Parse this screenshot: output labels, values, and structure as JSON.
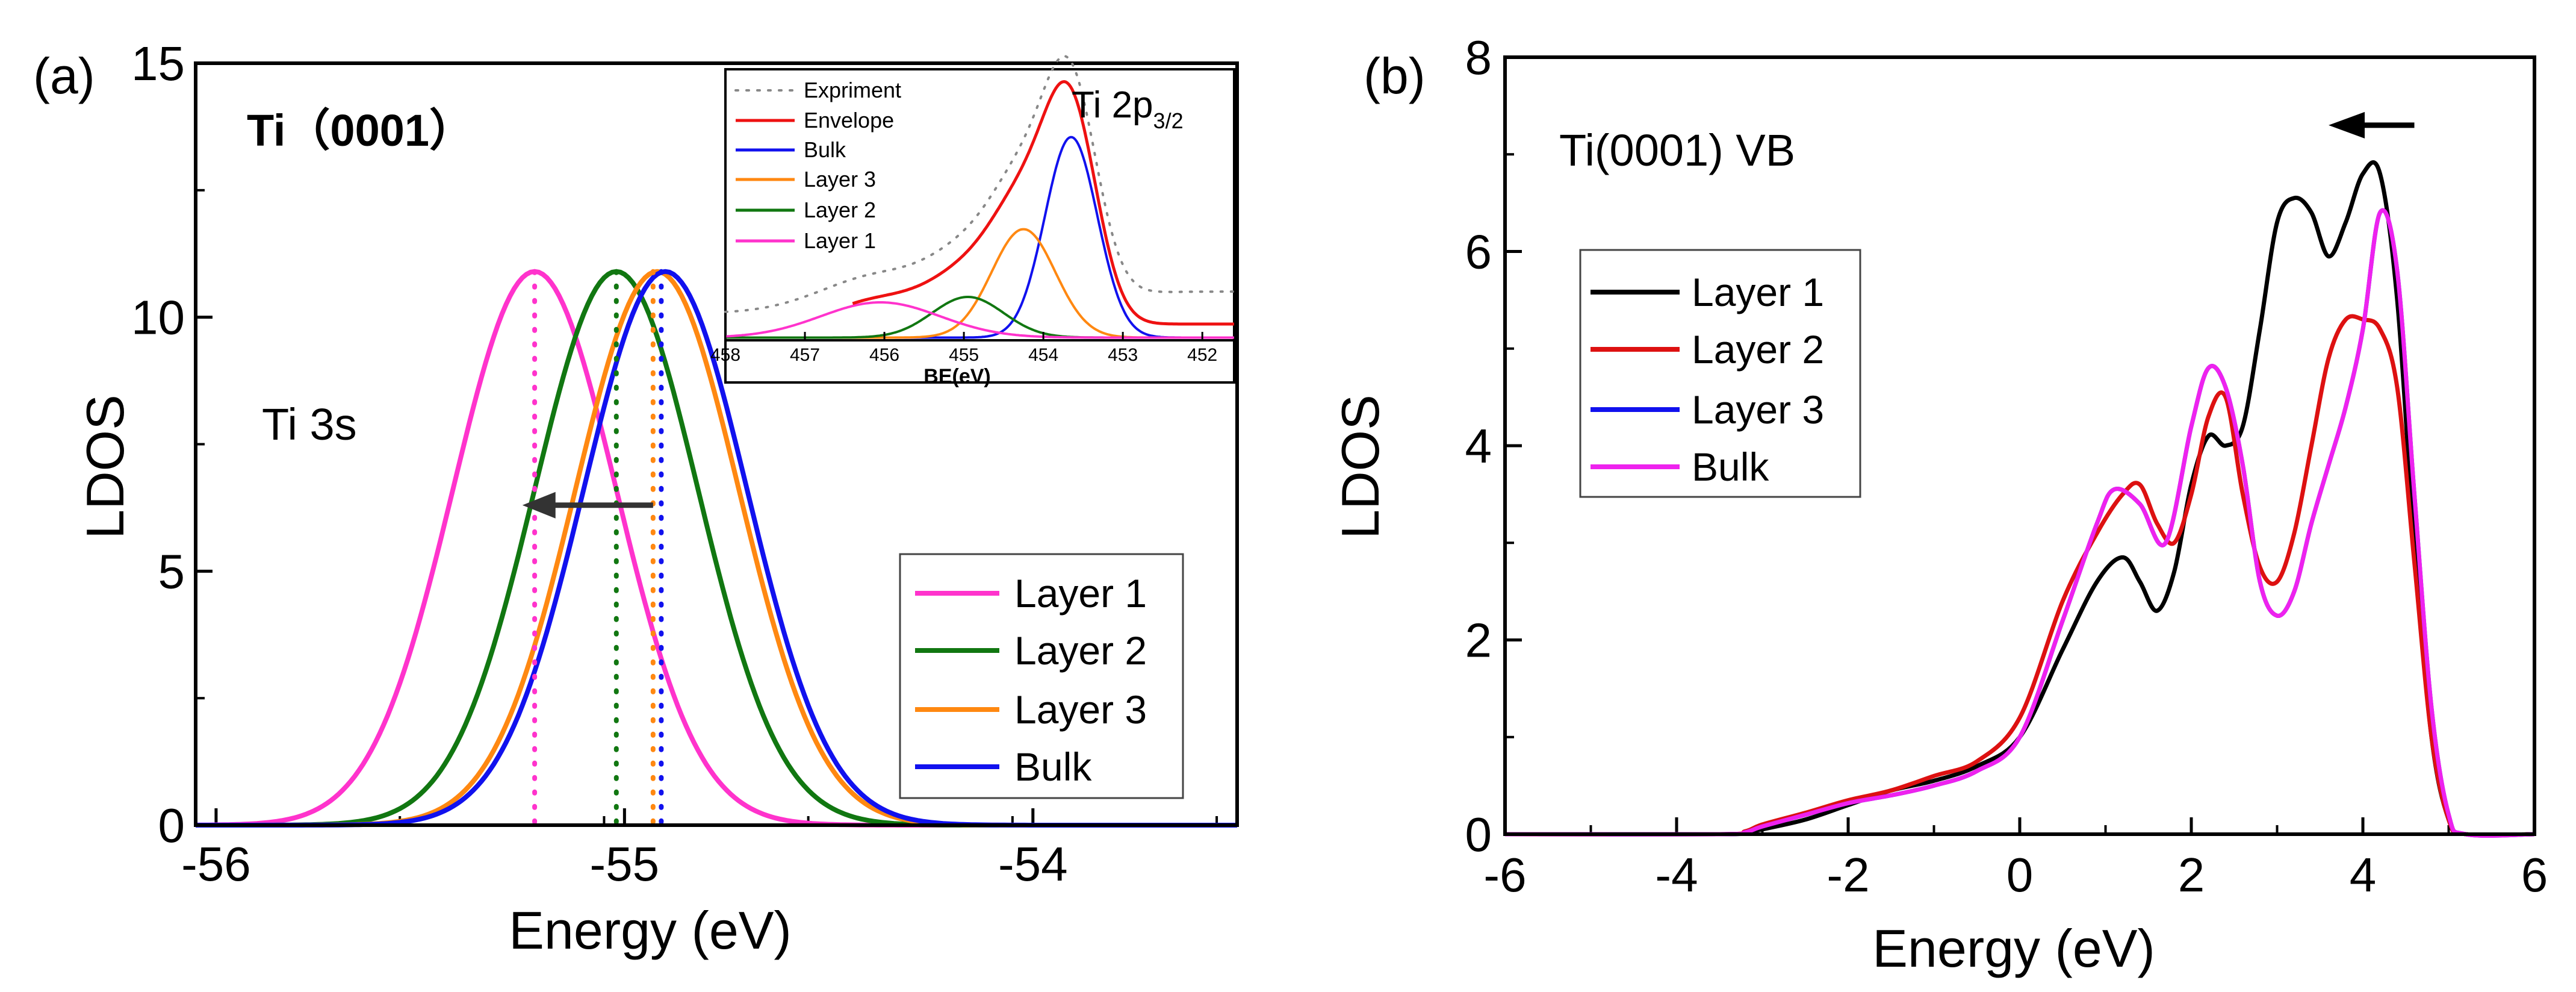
{
  "chart_data": [
    {
      "type": "line",
      "panel_label": "(a)",
      "title": "Ti（0001）",
      "annotation": "Ti 3s",
      "xlabel": "Energy (eV)",
      "ylabel": "LDOS",
      "xlim": [
        -56.05,
        -53.5
      ],
      "ylim": [
        0,
        15
      ],
      "xticks": [
        -56,
        -55,
        -54
      ],
      "yticks": [
        0,
        5,
        10,
        15
      ],
      "tick_labels_x": [
        "-56",
        "-55",
        "-54"
      ],
      "tick_labels_y": [
        "0",
        "5",
        "10",
        "15"
      ],
      "legend": [
        "Layer 1",
        "Layer 2",
        "Layer 3",
        "Bulk"
      ],
      "legend_position": "lower-right",
      "arrow": {
        "from_x": -54.93,
        "to_x": -55.25,
        "y": 6.3
      },
      "series": [
        {
          "name": "Layer 1",
          "color": "#ff33cc",
          "peak_x": -55.22,
          "peak_y": 10.9,
          "width": 0.2,
          "marker_x": -55.22
        },
        {
          "name": "Layer 2",
          "color": "#117711",
          "peak_x": -55.02,
          "peak_y": 10.9,
          "width": 0.2,
          "marker_x": -55.02
        },
        {
          "name": "Layer 3",
          "color": "#ff8811",
          "peak_x": -54.92,
          "peak_y": 10.9,
          "width": 0.2,
          "marker_x": -54.93
        },
        {
          "name": "Bulk",
          "color": "#1111ee",
          "peak_x": -54.9,
          "peak_y": 10.9,
          "width": 0.2,
          "marker_x": -54.91
        }
      ]
    },
    {
      "type": "line",
      "panel_label": "Ti 2p3/2 inset",
      "title": "Ti 2p",
      "title_subscript": "3/2",
      "xlabel": "BE(eV)",
      "xlim": [
        458,
        451.6
      ],
      "ylim": [
        0,
        1
      ],
      "xticks": [
        458,
        457,
        456,
        455,
        454,
        453,
        452
      ],
      "tick_labels_x": [
        "458",
        "457",
        "456",
        "455",
        "454",
        "453",
        "452"
      ],
      "legend": [
        "Expriment",
        "Envelope",
        "Bulk",
        "Layer 3",
        "Layer 2",
        "Layer 1"
      ],
      "legend_position": "top-left",
      "series": [
        {
          "name": "Expriment",
          "color": "#888888",
          "style": "dotted"
        },
        {
          "name": "Envelope",
          "color": "#ee1111",
          "style": "solid"
        },
        {
          "name": "Bulk",
          "color": "#1111ee",
          "peak_x": 453.65,
          "peak_y": 0.74,
          "width": 0.33
        },
        {
          "name": "Layer 3",
          "color": "#ff8811",
          "peak_x": 454.25,
          "peak_y": 0.4,
          "width": 0.4
        },
        {
          "name": "Layer 2",
          "color": "#117711",
          "peak_x": 454.95,
          "peak_y": 0.15,
          "width": 0.45
        },
        {
          "name": "Layer 1",
          "color": "#ff33cc",
          "peak_x": 456.05,
          "peak_y": 0.13,
          "width": 0.75
        }
      ]
    },
    {
      "type": "line",
      "panel_label": "(b)",
      "title": "Ti(0001) VB",
      "xlabel": "Energy (eV)",
      "ylabel": "LDOS",
      "xlim": [
        -6,
        6
      ],
      "ylim": [
        0,
        8
      ],
      "xticks": [
        -6,
        -4,
        -2,
        0,
        2,
        4,
        6
      ],
      "yticks": [
        0,
        2,
        4,
        6,
        8
      ],
      "tick_labels_x": [
        "-6",
        "-4",
        "-2",
        "0",
        "2",
        "4",
        "6"
      ],
      "tick_labels_y": [
        "0",
        "2",
        "4",
        "6",
        "8"
      ],
      "legend": [
        "Layer 1",
        "Layer 2",
        "Layer 3",
        "Bulk"
      ],
      "legend_position": "upper-left",
      "arrow": {
        "from_x": 4.6,
        "to_x": 3.6,
        "y": 7.3
      },
      "series": [
        {
          "name": "Layer 1",
          "color": "#000000",
          "x": [
            -6,
            -3.5,
            -3.2,
            -3,
            -2.5,
            -2,
            -1.5,
            -1,
            -0.5,
            0,
            0.5,
            0.9,
            1.2,
            1.4,
            1.6,
            1.8,
            2,
            2.2,
            2.4,
            2.6,
            2.8,
            3,
            3.2,
            3.4,
            3.6,
            3.8,
            4,
            4.2,
            4.4,
            4.6,
            4.8,
            5,
            5.2,
            6
          ],
          "y": [
            0,
            0,
            0.02,
            0.05,
            0.15,
            0.3,
            0.45,
            0.55,
            0.7,
            1.0,
            1.9,
            2.6,
            2.85,
            2.6,
            2.3,
            2.7,
            3.6,
            4.1,
            4.0,
            4.2,
            5.2,
            6.3,
            6.55,
            6.4,
            5.95,
            6.3,
            6.8,
            6.8,
            5.5,
            3.0,
            1.0,
            0.15,
            0,
            0
          ]
        },
        {
          "name": "Layer 2",
          "color": "#dd1111",
          "x": [
            -6,
            -3.5,
            -3.2,
            -3,
            -2.5,
            -2,
            -1.5,
            -1,
            -0.5,
            0,
            0.5,
            0.9,
            1.2,
            1.4,
            1.6,
            1.8,
            2,
            2.2,
            2.4,
            2.6,
            2.8,
            3,
            3.2,
            3.4,
            3.6,
            3.8,
            4,
            4.2,
            4.4,
            4.6,
            4.8,
            5,
            5.2,
            6
          ],
          "y": [
            0,
            0,
            0.03,
            0.1,
            0.22,
            0.35,
            0.45,
            0.6,
            0.75,
            1.2,
            2.4,
            3.1,
            3.5,
            3.6,
            3.2,
            3.0,
            3.5,
            4.3,
            4.5,
            3.5,
            2.75,
            2.6,
            3.1,
            4.0,
            4.9,
            5.3,
            5.3,
            5.2,
            4.6,
            2.8,
            1.0,
            0.15,
            0,
            0
          ]
        },
        {
          "name": "Layer 3",
          "color": "#1111ee",
          "x": [
            -6,
            -3.5,
            -3.2,
            -3,
            -2.5,
            -2,
            -1.5,
            -1,
            -0.5,
            0,
            0.5,
            0.9,
            1.1,
            1.4,
            1.7,
            2,
            2.2,
            2.4,
            2.6,
            2.8,
            3,
            3.2,
            3.4,
            3.6,
            3.8,
            4,
            4.2,
            4.4,
            4.6,
            4.8,
            5,
            5.2,
            6
          ],
          "y": [
            0,
            0,
            0.02,
            0.08,
            0.2,
            0.32,
            0.4,
            0.5,
            0.65,
            1.0,
            2.2,
            3.2,
            3.55,
            3.4,
            3.0,
            4.2,
            4.8,
            4.6,
            3.8,
            2.6,
            2.25,
            2.5,
            3.2,
            3.8,
            4.4,
            5.2,
            6.4,
            5.8,
            3.5,
            1.3,
            0.2,
            0,
            0
          ]
        },
        {
          "name": "Bulk",
          "color": "#ee22ee",
          "x": [
            -6,
            -3.5,
            -3.2,
            -3,
            -2.5,
            -2,
            -1.5,
            -1,
            -0.5,
            0,
            0.5,
            0.9,
            1.1,
            1.4,
            1.7,
            2,
            2.2,
            2.4,
            2.6,
            2.8,
            3,
            3.2,
            3.4,
            3.6,
            3.8,
            4,
            4.2,
            4.4,
            4.6,
            4.8,
            5,
            5.2,
            6
          ],
          "y": [
            0,
            0,
            0.02,
            0.08,
            0.2,
            0.32,
            0.4,
            0.5,
            0.65,
            1.0,
            2.2,
            3.2,
            3.55,
            3.4,
            3.0,
            4.2,
            4.8,
            4.6,
            3.8,
            2.6,
            2.25,
            2.5,
            3.2,
            3.8,
            4.4,
            5.2,
            6.4,
            5.8,
            3.5,
            1.3,
            0.2,
            0,
            0
          ]
        }
      ]
    }
  ]
}
